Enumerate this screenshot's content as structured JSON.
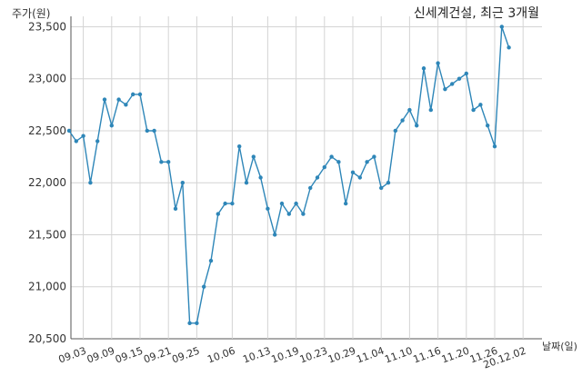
{
  "chart_data": {
    "type": "line",
    "title": "신세계건설, 최근 3개월",
    "ylabel": "주가(원)",
    "xlabel": "날짜(일)",
    "ylim": [
      20500,
      23600
    ],
    "yticks": [
      20500,
      21000,
      21500,
      22000,
      22500,
      23000,
      23500
    ],
    "ytick_labels": [
      "20,500",
      "21,000",
      "21,500",
      "22,000",
      "22,500",
      "23,000",
      "23,500"
    ],
    "grid": true,
    "color": "#2e86b8",
    "xtick_labels": [
      "09.03",
      "09.09",
      "09.15",
      "09.21",
      "09.25",
      "10.06",
      "10.13",
      "10.19",
      "10.23",
      "10.29",
      "11.04",
      "11.10",
      "11.16",
      "11.20",
      "11.26",
      "20.12.02"
    ],
    "xtick_index": [
      2,
      6,
      10,
      14,
      18,
      23,
      28,
      32,
      36,
      40,
      44,
      48,
      52,
      56,
      60,
      64
    ],
    "series": [
      {
        "values": [
          22500,
          22400,
          22450,
          22000,
          22400,
          22800,
          22550,
          22800,
          22750,
          22850,
          22850,
          22500,
          22500,
          22200,
          22200,
          21750,
          22000,
          20650,
          20650,
          21000,
          21250,
          21700,
          21800,
          21800,
          22350,
          22000,
          22250,
          22050,
          21750,
          21500,
          21800,
          21700,
          21800,
          21700,
          21950,
          22050,
          22150,
          22250,
          22200,
          21800,
          22100,
          22050,
          22200,
          22250,
          21950,
          22000,
          22500,
          22600,
          22700,
          22550,
          23100,
          22700,
          23150,
          22900,
          22950,
          23000,
          23050,
          22700,
          22750,
          22550,
          22350,
          23500,
          23300
        ]
      }
    ]
  }
}
